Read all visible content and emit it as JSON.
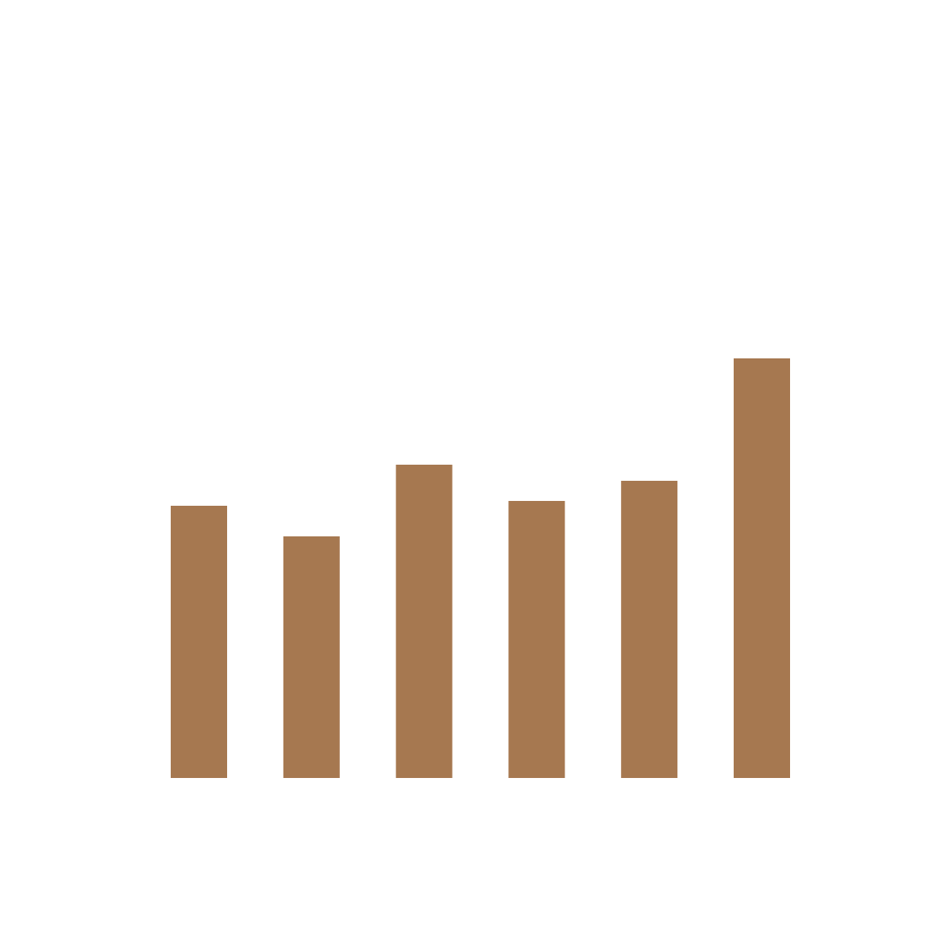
{
  "colors": {
    "background": "#ffffff",
    "bar": "#a67850"
  },
  "chart_data": {
    "type": "bar",
    "title": "",
    "xlabel": "",
    "ylabel": "",
    "grid": false,
    "categories": [
      "",
      "",
      "",
      "",
      "",
      ""
    ],
    "values": [
      338,
      300,
      389,
      344,
      369,
      521
    ],
    "ylim": [
      0,
      965
    ]
  }
}
